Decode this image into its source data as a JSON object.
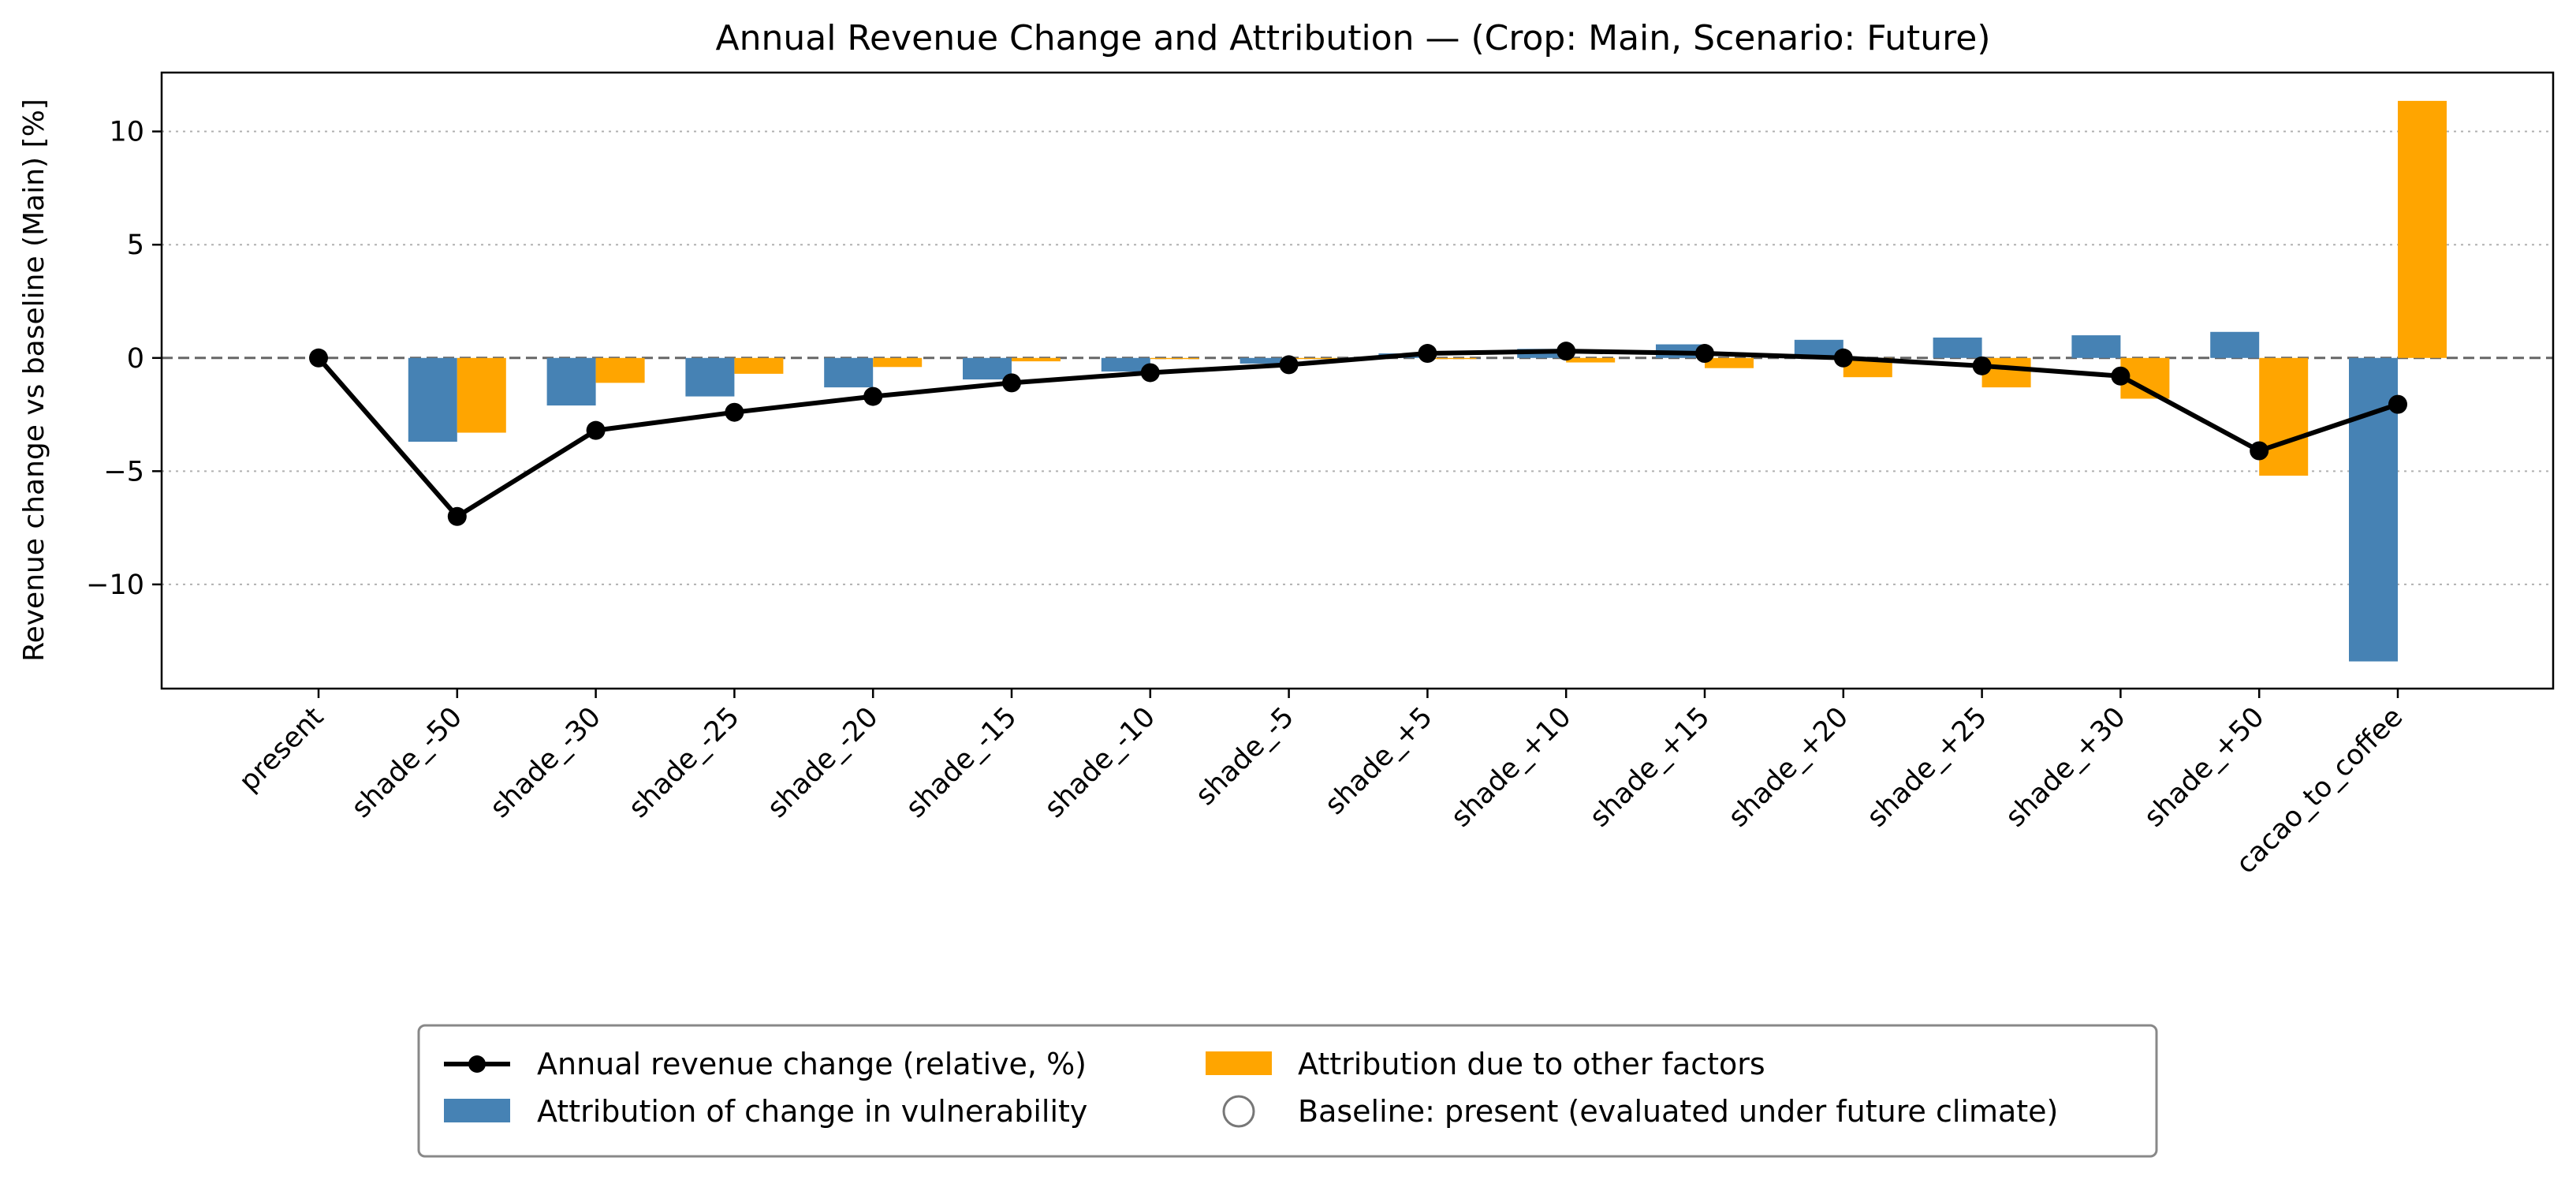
{
  "chart_data": {
    "type": "bar",
    "title": "Annual Revenue Change and Attribution — (Crop: Main, Scenario: Future)",
    "xlabel": "",
    "ylabel": "Revenue change vs baseline (Main) [%]",
    "ylim": [
      -14.6,
      12.6
    ],
    "yticks": [
      -10,
      -5,
      0,
      5,
      10
    ],
    "grid": "horizontal dotted",
    "legend_position": "bottom",
    "categories": [
      "present",
      "shade_-50",
      "shade_-30",
      "shade_-25",
      "shade_-20",
      "shade_-15",
      "shade_-10",
      "shade_-5",
      "shade_+5",
      "shade_+10",
      "shade_+15",
      "shade_+20",
      "shade_+25",
      "shade_+30",
      "shade_+50",
      "cacao_to_coffee"
    ],
    "series": [
      {
        "name": "Annual revenue change (relative, %)",
        "kind": "line",
        "color": "#000000",
        "values": [
          0.0,
          -7.0,
          -3.2,
          -2.4,
          -1.7,
          -1.1,
          -0.65,
          -0.3,
          0.2,
          0.3,
          0.2,
          0.0,
          -0.35,
          -0.8,
          -4.1,
          -2.05
        ]
      },
      {
        "name": "Attribution of change in vulnerability",
        "kind": "bar",
        "color": "#4682b4",
        "values": [
          0.0,
          -3.7,
          -2.1,
          -1.7,
          -1.3,
          -0.95,
          -0.6,
          -0.25,
          0.2,
          0.4,
          0.6,
          0.8,
          0.9,
          1.0,
          1.15,
          -13.4
        ]
      },
      {
        "name": "Attribution due to other factors",
        "kind": "bar",
        "color": "#ffa500",
        "values": [
          0.0,
          -3.3,
          -1.1,
          -0.7,
          -0.4,
          -0.15,
          -0.05,
          -0.05,
          -0.05,
          -0.2,
          -0.45,
          -0.85,
          -1.3,
          -1.8,
          -5.2,
          11.35
        ]
      }
    ],
    "baseline": {
      "label": "Baseline: present (evaluated under future climate)",
      "value": 0
    }
  }
}
